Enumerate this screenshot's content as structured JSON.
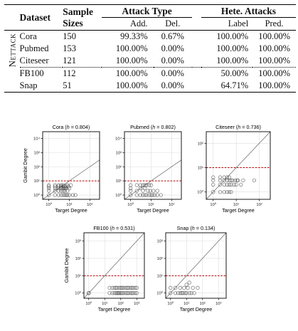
{
  "table": {
    "headers": {
      "dataset": "Dataset",
      "sample_sizes_line1": "Sample",
      "sample_sizes_line2": "Sizes",
      "attack_type": "Attack Type",
      "add": "Add.",
      "del": "Del.",
      "hete_attacks": "Hete. Attacks",
      "label": "Label",
      "pred": "Pred."
    },
    "group_label": "Nettack",
    "rows": [
      {
        "dataset": "Cora",
        "size": "150",
        "add": "99.33%",
        "del": "0.67%",
        "label": "100.00%",
        "pred": "100.00%"
      },
      {
        "dataset": "Pubmed",
        "size": "153",
        "add": "100.00%",
        "del": "0.00%",
        "label": "100.00%",
        "pred": "100.00%"
      },
      {
        "dataset": "Citeseer",
        "size": "121",
        "add": "100.00%",
        "del": "0.00%",
        "label": "100.00%",
        "pred": "100.00%"
      },
      {
        "dataset": "FB100",
        "size": "112",
        "add": "100.00%",
        "del": "0.00%",
        "label": "50.00%",
        "pred": "100.00%"
      },
      {
        "dataset": "Snap",
        "size": "51",
        "add": "100.00%",
        "del": "0.00%",
        "label": "64.71%",
        "pred": "100.00%"
      }
    ]
  },
  "chart_data": [
    {
      "type": "scatter",
      "title": "Cora (h = 0.804)",
      "title_prefix": "Cora (",
      "title_h": "h",
      "title_suffix": " = 0.804)",
      "xlabel": "Target Degree",
      "ylabel": "Gambit Degree",
      "log_x": true,
      "log_y": true,
      "xlim": [
        0.5,
        300
      ],
      "ylim": [
        0.5,
        30000
      ],
      "hline": 10,
      "diagonal": true,
      "x_ticks": [
        1,
        10,
        100
      ],
      "x_tick_labels": [
        "10⁰",
        "10¹",
        "10²"
      ],
      "y_ticks": [
        1,
        10,
        100,
        1000,
        10000
      ],
      "y_tick_labels": [
        "10⁰",
        "10¹",
        "10²",
        "10³",
        "10⁴"
      ],
      "points": [
        [
          1,
          1
        ],
        [
          1,
          2
        ],
        [
          1,
          3
        ],
        [
          1,
          4
        ],
        [
          1,
          5
        ],
        [
          2,
          1
        ],
        [
          2,
          2
        ],
        [
          2,
          3
        ],
        [
          2,
          4
        ],
        [
          2,
          5
        ],
        [
          3,
          1
        ],
        [
          3,
          2
        ],
        [
          3,
          3
        ],
        [
          3,
          4
        ],
        [
          3,
          5
        ],
        [
          4,
          1
        ],
        [
          4,
          2
        ],
        [
          4,
          3
        ],
        [
          4,
          4
        ],
        [
          4,
          5
        ],
        [
          5,
          1
        ],
        [
          5,
          2
        ],
        [
          5,
          3
        ],
        [
          5,
          4
        ],
        [
          5,
          5
        ],
        [
          6,
          1
        ],
        [
          6,
          2
        ],
        [
          6,
          3
        ],
        [
          6,
          4
        ],
        [
          7,
          1
        ],
        [
          7,
          3
        ],
        [
          7,
          4
        ],
        [
          8,
          1
        ],
        [
          8,
          2
        ],
        [
          8,
          5
        ],
        [
          9,
          4
        ],
        [
          10,
          1
        ],
        [
          10,
          3
        ],
        [
          12,
          5
        ],
        [
          15,
          1
        ],
        [
          20,
          1
        ]
      ]
    },
    {
      "type": "scatter",
      "title": "Pubmed (h = 0.802)",
      "title_prefix": "Pubmed (",
      "title_h": "h",
      "title_suffix": " = 0.802)",
      "xlabel": "Target Degree",
      "ylabel": "",
      "log_x": true,
      "log_y": true,
      "xlim": [
        0.5,
        300
      ],
      "ylim": [
        0.5,
        30000
      ],
      "hline": 10,
      "diagonal": true,
      "x_ticks": [
        1,
        10,
        100
      ],
      "x_tick_labels": [
        "10⁰",
        "10¹",
        "10²"
      ],
      "y_ticks": [
        1,
        10,
        100,
        1000,
        10000
      ],
      "y_tick_labels": [
        "10⁰",
        "10¹",
        "10²",
        "10³",
        "10⁴"
      ],
      "points": [
        [
          1,
          1
        ],
        [
          1,
          2
        ],
        [
          1,
          3
        ],
        [
          1,
          5
        ],
        [
          2,
          1
        ],
        [
          2,
          2
        ],
        [
          2,
          5
        ],
        [
          3,
          1
        ],
        [
          3,
          3
        ],
        [
          3,
          5
        ],
        [
          4,
          1
        ],
        [
          4,
          2
        ],
        [
          4,
          5
        ],
        [
          5,
          1
        ],
        [
          5,
          3
        ],
        [
          5,
          5
        ],
        [
          6,
          1
        ],
        [
          6,
          5
        ],
        [
          7,
          2
        ],
        [
          8,
          1
        ],
        [
          8,
          5
        ],
        [
          9,
          2
        ],
        [
          10,
          1
        ],
        [
          10,
          5
        ],
        [
          12,
          1
        ],
        [
          13,
          2
        ],
        [
          15,
          1
        ],
        [
          20,
          1
        ],
        [
          30,
          1
        ],
        [
          20,
          2
        ]
      ]
    },
    {
      "type": "scatter",
      "title": "Citeseer (h = 0.736)",
      "title_prefix": "Citeseer (",
      "title_h": "h",
      "title_suffix": " = 0.736)",
      "xlabel": "Target Degree",
      "ylabel": "",
      "log_x": true,
      "log_y": true,
      "xlim": [
        0.5,
        300
      ],
      "ylim": [
        0.5,
        300
      ],
      "hline": 10,
      "diagonal": true,
      "x_ticks": [
        1,
        10,
        100
      ],
      "x_tick_labels": [
        "10⁰",
        "10¹",
        "10²"
      ],
      "y_ticks": [
        1,
        10,
        100
      ],
      "y_tick_labels": [
        "10⁰",
        "10¹",
        "10²"
      ],
      "points": [
        [
          1,
          1
        ],
        [
          1,
          2
        ],
        [
          1,
          3
        ],
        [
          1,
          4
        ],
        [
          2,
          1
        ],
        [
          2,
          2
        ],
        [
          2,
          3
        ],
        [
          2,
          4
        ],
        [
          3,
          1
        ],
        [
          3,
          2
        ],
        [
          3,
          3
        ],
        [
          3,
          4
        ],
        [
          4,
          1
        ],
        [
          4,
          2
        ],
        [
          4,
          3
        ],
        [
          4,
          4
        ],
        [
          5,
          1
        ],
        [
          5,
          2
        ],
        [
          5,
          3
        ],
        [
          5,
          4
        ],
        [
          6,
          1
        ],
        [
          6,
          2
        ],
        [
          6,
          3
        ],
        [
          7,
          3
        ],
        [
          8,
          2
        ],
        [
          9,
          3
        ],
        [
          10,
          2
        ],
        [
          11,
          3
        ],
        [
          12,
          3
        ],
        [
          16,
          2
        ],
        [
          20,
          3
        ],
        [
          60,
          3
        ]
      ]
    },
    {
      "type": "scatter",
      "title": "FB100 (h = 0.531)",
      "title_prefix": "FB100 (",
      "title_h": "h",
      "title_suffix": " = 0.531)",
      "xlabel": "Target Degree",
      "ylabel": "Gambit Degree",
      "log_x": true,
      "log_y": true,
      "xlim": [
        0.5,
        3000
      ],
      "ylim": [
        0.5,
        3000
      ],
      "hline": 10,
      "diagonal": true,
      "x_ticks": [
        1,
        10,
        100,
        1000
      ],
      "x_tick_labels": [
        "10⁰",
        "10¹",
        "10²",
        "10³"
      ],
      "y_ticks": [
        1,
        10,
        100,
        1000
      ],
      "y_tick_labels": [
        "10⁰",
        "10¹",
        "10²",
        "10³"
      ],
      "points": [
        [
          1,
          1
        ],
        [
          1,
          1
        ],
        [
          20,
          1
        ],
        [
          30,
          1
        ],
        [
          40,
          1
        ],
        [
          50,
          1
        ],
        [
          60,
          1
        ],
        [
          70,
          1
        ],
        [
          80,
          1
        ],
        [
          100,
          1
        ],
        [
          120,
          1
        ],
        [
          150,
          1
        ],
        [
          200,
          1
        ],
        [
          250,
          1
        ],
        [
          300,
          1
        ],
        [
          400,
          1
        ],
        [
          500,
          1
        ],
        [
          600,
          1
        ],
        [
          800,
          1
        ],
        [
          1000,
          1
        ],
        [
          20,
          2
        ],
        [
          30,
          2
        ],
        [
          40,
          2
        ],
        [
          50,
          2
        ],
        [
          60,
          2
        ],
        [
          80,
          2
        ],
        [
          100,
          2
        ],
        [
          120,
          2
        ],
        [
          150,
          2
        ],
        [
          200,
          2
        ],
        [
          250,
          2
        ],
        [
          300,
          2
        ],
        [
          400,
          2
        ],
        [
          500,
          2
        ],
        [
          600,
          2
        ],
        [
          800,
          2
        ],
        [
          1000,
          2
        ]
      ]
    },
    {
      "type": "scatter",
      "title": "Snap (h = 0.134)",
      "title_prefix": "Snap (",
      "title_h": "h",
      "title_suffix": " = 0.134)",
      "xlabel": "Target Degree",
      "ylabel": "",
      "log_x": true,
      "log_y": true,
      "xlim": [
        0.5,
        3000
      ],
      "ylim": [
        0.5,
        3000
      ],
      "hline": 10,
      "diagonal": true,
      "x_ticks": [
        1,
        10,
        100,
        1000
      ],
      "x_tick_labels": [
        "10⁰",
        "10¹",
        "10²",
        "10³"
      ],
      "y_ticks": [
        1,
        10,
        100,
        1000
      ],
      "y_tick_labels": [
        "10⁰",
        "10¹",
        "10²",
        "10³"
      ],
      "points": [
        [
          1,
          1
        ],
        [
          1,
          2
        ],
        [
          2,
          1
        ],
        [
          2,
          2
        ],
        [
          3,
          1
        ],
        [
          4,
          1
        ],
        [
          4,
          2
        ],
        [
          5,
          1
        ],
        [
          6,
          1
        ],
        [
          7,
          2
        ],
        [
          8,
          1
        ],
        [
          10,
          1
        ],
        [
          12,
          2
        ],
        [
          15,
          1
        ],
        [
          20,
          1
        ],
        [
          25,
          2
        ],
        [
          30,
          1
        ],
        [
          50,
          2
        ],
        [
          10,
          3
        ],
        [
          15,
          4
        ]
      ]
    }
  ]
}
